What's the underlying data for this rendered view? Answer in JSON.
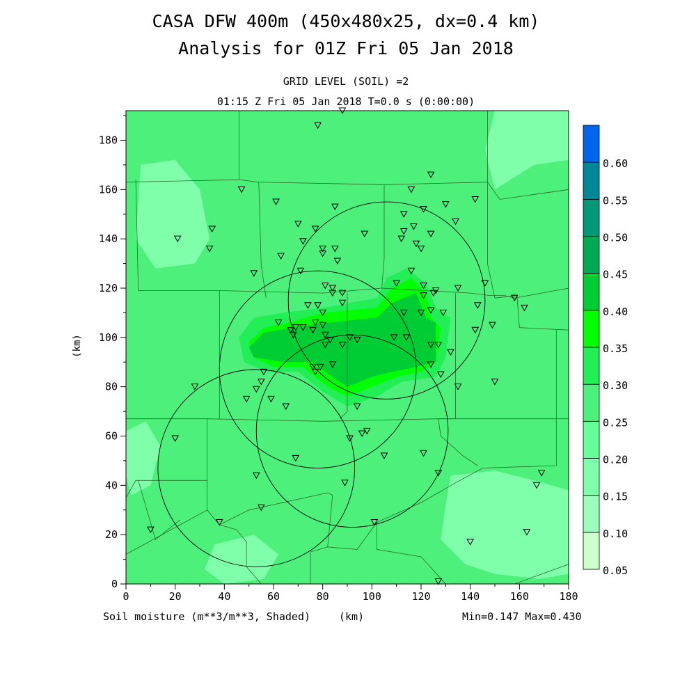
{
  "header": {
    "title_line1": "CASA DFW 400m (450x480x25, dx=0.4 km)",
    "title_line2": "Analysis for 01Z Fri 05 Jan 2018",
    "subtitle_line1": "GRID LEVEL (SOIL) =2",
    "subtitle_line2": "01:15 Z Fri 05 Jan 2018    T=0.0 s (0:00:00)"
  },
  "footer": {
    "field_label": "Soil moisture (m**3/m**3, Shaded)",
    "x_unit": "(km)",
    "minmax": "Min=0.147 Max=0.430"
  },
  "chart_data": {
    "type": "heatmap",
    "title": "CASA DFW 400m (450x480x25, dx=0.4 km)",
    "subtitle": "Analysis for 01Z Fri 05 Jan 2018",
    "xlabel": "(km)",
    "ylabel": "(km)",
    "xlim": [
      0,
      180
    ],
    "ylim": [
      0,
      192
    ],
    "x_ticks": [
      0,
      20,
      40,
      60,
      80,
      100,
      120,
      140,
      160,
      180
    ],
    "y_ticks": [
      0,
      20,
      40,
      60,
      80,
      100,
      120,
      140,
      160,
      180
    ],
    "field": "Soil moisture (m**3/m**3, Shaded)",
    "min": 0.147,
    "max": 0.43,
    "colorbar": {
      "levels": [
        0.05,
        0.1,
        0.15,
        0.2,
        0.25,
        0.3,
        0.35,
        0.4,
        0.45,
        0.5,
        0.55,
        0.6
      ],
      "colors": [
        "#ccffcc",
        "#99ffbb",
        "#80ffaa",
        "#66ff99",
        "#4cf07a",
        "#22ee55",
        "#00ff00",
        "#00cc33",
        "#00aa55",
        "#009977",
        "#008899",
        "#0066ee"
      ]
    },
    "background_value_color": "#4cf07a",
    "regions": [
      {
        "value": 0.175,
        "polygon": [
          [
            6,
            170
          ],
          [
            20,
            172
          ],
          [
            30,
            160
          ],
          [
            34,
            140
          ],
          [
            28,
            130
          ],
          [
            12,
            128
          ],
          [
            4,
            140
          ]
        ]
      },
      {
        "value": 0.175,
        "polygon": [
          [
            0,
            62
          ],
          [
            8,
            66
          ],
          [
            14,
            56
          ],
          [
            10,
            40
          ],
          [
            2,
            36
          ],
          [
            0,
            44
          ]
        ]
      },
      {
        "value": 0.175,
        "polygon": [
          [
            132,
            44
          ],
          [
            150,
            46
          ],
          [
            166,
            42
          ],
          [
            180,
            38
          ],
          [
            180,
            4
          ],
          [
            168,
            2
          ],
          [
            150,
            4
          ],
          [
            138,
            8
          ],
          [
            128,
            18
          ],
          [
            130,
            32
          ]
        ]
      },
      {
        "value": 0.175,
        "polygon": [
          [
            150,
            160
          ],
          [
            166,
            170
          ],
          [
            180,
            172
          ],
          [
            180,
            192
          ],
          [
            150,
            192
          ],
          [
            146,
            176
          ]
        ]
      },
      {
        "value": 0.175,
        "polygon": [
          [
            36,
            16
          ],
          [
            52,
            20
          ],
          [
            62,
            12
          ],
          [
            56,
            2
          ],
          [
            40,
            0
          ],
          [
            32,
            6
          ]
        ]
      },
      {
        "value": 0.275,
        "polygon": [
          [
            44,
            100
          ],
          [
            50,
            110
          ],
          [
            62,
            114
          ],
          [
            80,
            116
          ],
          [
            100,
            118
          ],
          [
            104,
            128
          ],
          [
            112,
            132
          ],
          [
            122,
            126
          ],
          [
            128,
            116
          ],
          [
            136,
            112
          ],
          [
            134,
            94
          ],
          [
            130,
            82
          ],
          [
            116,
            80
          ],
          [
            106,
            72
          ],
          [
            90,
            70
          ],
          [
            76,
            76
          ],
          [
            68,
            84
          ],
          [
            54,
            84
          ],
          [
            44,
            90
          ]
        ]
      },
      {
        "value": 0.325,
        "polygon": [
          [
            46,
            100
          ],
          [
            52,
            108
          ],
          [
            64,
            110
          ],
          [
            80,
            112
          ],
          [
            102,
            116
          ],
          [
            106,
            124
          ],
          [
            114,
            128
          ],
          [
            122,
            122
          ],
          [
            126,
            112
          ],
          [
            132,
            108
          ],
          [
            130,
            92
          ],
          [
            126,
            84
          ],
          [
            112,
            82
          ],
          [
            102,
            76
          ],
          [
            90,
            72
          ],
          [
            80,
            78
          ],
          [
            70,
            86
          ],
          [
            58,
            86
          ],
          [
            48,
            90
          ]
        ]
      },
      {
        "value": 0.375,
        "polygon": [
          [
            50,
            98
          ],
          [
            56,
            104
          ],
          [
            66,
            106
          ],
          [
            80,
            110
          ],
          [
            102,
            112
          ],
          [
            108,
            120
          ],
          [
            116,
            124
          ],
          [
            122,
            118
          ],
          [
            124,
            108
          ],
          [
            128,
            104
          ],
          [
            126,
            90
          ],
          [
            120,
            86
          ],
          [
            110,
            84
          ],
          [
            100,
            80
          ],
          [
            90,
            76
          ],
          [
            82,
            80
          ],
          [
            72,
            88
          ],
          [
            60,
            88
          ],
          [
            52,
            92
          ]
        ]
      },
      {
        "value": 0.425,
        "polygon": [
          [
            50,
            96
          ],
          [
            56,
            102
          ],
          [
            68,
            104
          ],
          [
            82,
            106
          ],
          [
            102,
            108
          ],
          [
            108,
            114
          ],
          [
            118,
            118
          ],
          [
            122,
            108
          ],
          [
            126,
            106
          ],
          [
            126,
            90
          ],
          [
            118,
            88
          ],
          [
            108,
            86
          ],
          [
            100,
            84
          ],
          [
            90,
            80
          ],
          [
            84,
            84
          ],
          [
            76,
            90
          ],
          [
            64,
            90
          ],
          [
            52,
            92
          ]
        ]
      }
    ],
    "radar_rings": [
      {
        "cx": 53,
        "cy": 47,
        "r": 40
      },
      {
        "cx": 78,
        "cy": 87,
        "r": 40
      },
      {
        "cx": 92,
        "cy": 62,
        "r": 39
      },
      {
        "cx": 106,
        "cy": 115,
        "r": 40
      }
    ],
    "stations": [
      [
        78,
        186
      ],
      [
        88,
        192
      ],
      [
        124,
        166
      ],
      [
        47,
        160
      ],
      [
        116,
        160
      ],
      [
        61,
        155
      ],
      [
        85,
        153
      ],
      [
        130,
        154
      ],
      [
        121,
        152
      ],
      [
        113,
        150
      ],
      [
        142,
        156
      ],
      [
        70,
        146
      ],
      [
        77,
        144
      ],
      [
        117,
        145
      ],
      [
        134,
        147
      ],
      [
        35,
        144
      ],
      [
        113,
        143
      ],
      [
        124,
        142
      ],
      [
        97,
        142
      ],
      [
        21,
        140
      ],
      [
        72,
        139
      ],
      [
        80,
        136
      ],
      [
        85,
        136
      ],
      [
        80,
        134
      ],
      [
        112,
        140
      ],
      [
        118,
        138
      ],
      [
        120,
        136
      ],
      [
        34,
        136
      ],
      [
        63,
        133
      ],
      [
        86,
        131
      ],
      [
        52,
        126
      ],
      [
        71,
        127
      ],
      [
        116,
        127
      ],
      [
        81,
        121
      ],
      [
        84,
        120
      ],
      [
        110,
        122
      ],
      [
        121,
        121
      ],
      [
        121,
        117
      ],
      [
        125,
        118
      ],
      [
        135,
        120
      ],
      [
        84,
        118
      ],
      [
        88,
        118
      ],
      [
        146,
        122
      ],
      [
        158,
        116
      ],
      [
        143,
        113
      ],
      [
        126,
        119
      ],
      [
        162,
        112
      ],
      [
        88,
        114
      ],
      [
        113,
        110
      ],
      [
        120,
        110
      ],
      [
        124,
        111
      ],
      [
        129,
        110
      ],
      [
        74,
        113
      ],
      [
        78,
        113
      ],
      [
        80,
        110
      ],
      [
        77,
        106
      ],
      [
        80,
        105
      ],
      [
        62,
        106
      ],
      [
        142,
        103
      ],
      [
        149,
        105
      ],
      [
        69,
        104
      ],
      [
        72,
        104
      ],
      [
        76,
        103
      ],
      [
        81,
        101
      ],
      [
        83,
        99
      ],
      [
        81,
        97
      ],
      [
        88,
        97
      ],
      [
        67,
        103
      ],
      [
        68,
        101
      ],
      [
        76,
        88
      ],
      [
        79,
        88
      ],
      [
        84,
        89
      ],
      [
        77,
        86
      ],
      [
        127,
        97
      ],
      [
        132,
        94
      ],
      [
        128,
        85
      ],
      [
        91,
        100
      ],
      [
        94,
        99
      ],
      [
        109,
        100
      ],
      [
        114,
        100
      ],
      [
        124,
        97
      ],
      [
        135,
        80
      ],
      [
        150,
        82
      ],
      [
        124,
        89
      ],
      [
        56,
        86
      ],
      [
        55,
        82
      ],
      [
        53,
        79
      ],
      [
        49,
        75
      ],
      [
        59,
        75
      ],
      [
        65,
        72
      ],
      [
        94,
        72
      ],
      [
        96,
        61
      ],
      [
        98,
        62
      ],
      [
        91,
        59
      ],
      [
        28,
        80
      ],
      [
        20,
        59
      ],
      [
        69,
        51
      ],
      [
        105,
        52
      ],
      [
        121,
        53
      ],
      [
        127,
        45
      ],
      [
        169,
        45
      ],
      [
        167,
        40
      ],
      [
        53,
        44
      ],
      [
        89,
        41
      ],
      [
        55,
        31
      ],
      [
        38,
        25
      ],
      [
        101,
        25
      ],
      [
        10,
        22
      ],
      [
        140,
        17
      ],
      [
        163,
        21
      ],
      [
        127,
        1
      ]
    ]
  }
}
